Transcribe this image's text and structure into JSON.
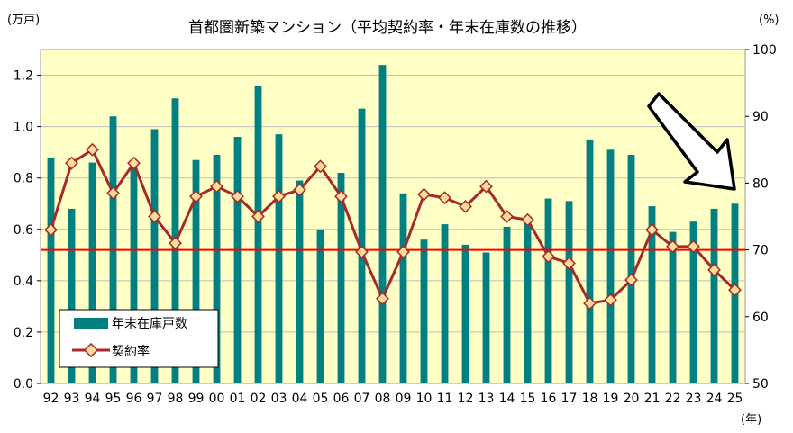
{
  "chart_data": {
    "type": "bar+line",
    "title": "首都圏新築マンション（平均契約率・年末在庫数の推移）",
    "y_left_unit": "(万戸)",
    "y_right_unit": "(%)",
    "x_unit": "(年)",
    "categories": [
      "92",
      "93",
      "94",
      "95",
      "96",
      "97",
      "98",
      "99",
      "00",
      "01",
      "02",
      "03",
      "04",
      "05",
      "06",
      "07",
      "08",
      "09",
      "10",
      "11",
      "12",
      "13",
      "14",
      "15",
      "16",
      "17",
      "18",
      "19",
      "20",
      "21",
      "22",
      "23",
      "24",
      "25"
    ],
    "y_left_ticks": [
      "0.0",
      "0.2",
      "0.4",
      "0.6",
      "0.8",
      "1.0",
      "1.2"
    ],
    "y_right_ticks": [
      "50",
      "60",
      "70",
      "80",
      "90",
      "100"
    ],
    "ylim_left": [
      0,
      1.3
    ],
    "ylim_right": [
      50,
      100
    ],
    "reference_line_pct": 70,
    "series": [
      {
        "name": "年末在庫戸数",
        "kind": "bar",
        "axis": "left",
        "color": "#008080",
        "values": [
          0.88,
          0.68,
          0.86,
          1.04,
          0.84,
          0.99,
          1.11,
          0.87,
          0.89,
          0.96,
          1.16,
          0.97,
          0.79,
          0.6,
          0.82,
          1.07,
          1.24,
          0.74,
          0.56,
          0.62,
          0.54,
          0.51,
          0.61,
          0.63,
          0.72,
          0.71,
          0.95,
          0.91,
          0.89,
          0.69,
          0.59,
          0.63,
          0.68,
          0.7
        ]
      },
      {
        "name": "契約率",
        "kind": "line",
        "axis": "right",
        "color": "#a52a2a",
        "values": [
          73.0,
          83.0,
          85.0,
          78.5,
          83.0,
          75.0,
          71.0,
          78.0,
          79.5,
          78.0,
          75.0,
          78.0,
          79.0,
          82.5,
          78.0,
          69.7,
          62.7,
          69.7,
          78.3,
          77.8,
          76.5,
          79.5,
          75.0,
          74.5,
          69.0,
          68.0,
          62.0,
          62.5,
          65.5,
          73.0,
          70.5,
          70.5,
          67.0,
          64.0
        ]
      }
    ],
    "legend_position": "bottom-left"
  },
  "colors": {
    "plot_bg": "#ffffc6",
    "bar": "#008080",
    "line": "#a52a2a",
    "marker_fill": "#ffdc9a",
    "reference_line": "#ff0000",
    "arrow_fill": "#ffffff"
  },
  "annotation": "downward-arrow"
}
